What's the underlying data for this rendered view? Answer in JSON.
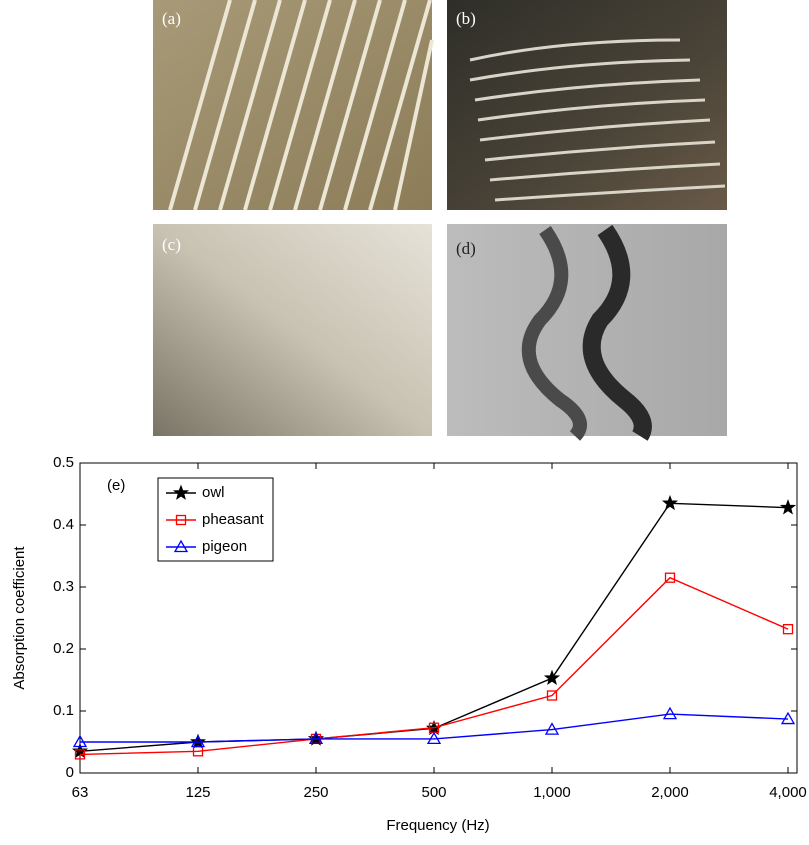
{
  "panels": [
    {
      "label": "(a)"
    },
    {
      "label": "(b)"
    },
    {
      "label": "(c)"
    },
    {
      "label": "(d)"
    }
  ],
  "chart_data": {
    "type": "line",
    "annotation": "(e)",
    "x_label": "Frequency (Hz)",
    "y_label": "Absorption coefficient",
    "categories": [
      "63",
      "125",
      "250",
      "500",
      "1,000",
      "2,000",
      "4,000"
    ],
    "series": [
      {
        "name": "owl",
        "color": "#000000",
        "marker": "star",
        "values": [
          0.035,
          0.05,
          0.055,
          0.072,
          0.153,
          0.435,
          0.428
        ]
      },
      {
        "name": "pheasant",
        "color": "#ff0000",
        "marker": "square",
        "values": [
          0.03,
          0.035,
          0.055,
          0.073,
          0.125,
          0.315,
          0.232
        ]
      },
      {
        "name": "pigeon",
        "color": "#0000ff",
        "marker": "triangle",
        "values": [
          0.05,
          0.05,
          0.055,
          0.055,
          0.07,
          0.095,
          0.087
        ]
      }
    ],
    "ylim": [
      0,
      0.5
    ],
    "yticks": [
      0,
      0.1,
      0.2,
      0.3,
      0.4,
      0.5
    ],
    "legend": "upper left",
    "grid": false
  }
}
